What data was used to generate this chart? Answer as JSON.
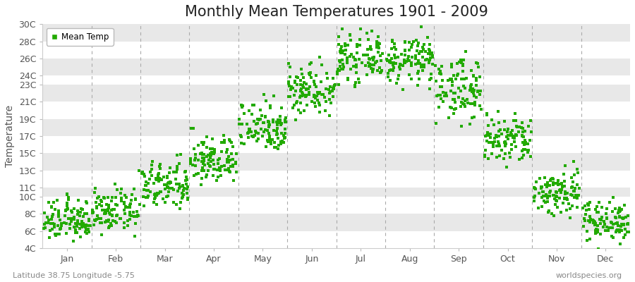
{
  "title": "Monthly Mean Temperatures 1901 - 2009",
  "ylabel": "Temperature",
  "subtitle_left": "Latitude 38.75 Longitude -5.75",
  "subtitle_right": "worldspecies.org",
  "legend_label": "Mean Temp",
  "dot_color": "#22aa00",
  "bg_color": "#ffffff",
  "band_colors": [
    "#ffffff",
    "#e8e8e8"
  ],
  "title_fontsize": 15,
  "axis_label_fontsize": 10,
  "tick_fontsize": 9,
  "num_years": 109,
  "months": [
    "Jan",
    "Feb",
    "Mar",
    "Apr",
    "May",
    "Jun",
    "Jul",
    "Aug",
    "Sep",
    "Oct",
    "Nov",
    "Dec"
  ],
  "month_positions": [
    0.5,
    1.5,
    2.5,
    3.5,
    4.5,
    5.5,
    6.5,
    7.5,
    8.5,
    9.5,
    10.5,
    11.5
  ],
  "divider_positions": [
    1,
    2,
    3,
    4,
    5,
    6,
    7,
    8,
    9,
    10,
    11
  ],
  "ytick_labels": [
    "4C",
    "6C",
    "8C",
    "10C",
    "11C",
    "13C",
    "15C",
    "17C",
    "19C",
    "21C",
    "23C",
    "24C",
    "26C",
    "28C",
    "30C"
  ],
  "ytick_values": [
    4,
    6,
    8,
    10,
    11,
    13,
    15,
    17,
    19,
    21,
    23,
    24,
    26,
    28,
    30
  ],
  "monthly_means": [
    7.2,
    8.3,
    11.2,
    14.2,
    18.2,
    22.5,
    26.0,
    25.8,
    22.5,
    16.5,
    10.5,
    7.2
  ],
  "monthly_stds": [
    1.2,
    1.2,
    1.4,
    1.4,
    1.5,
    1.5,
    1.3,
    1.3,
    1.8,
    1.5,
    1.4,
    1.2
  ]
}
